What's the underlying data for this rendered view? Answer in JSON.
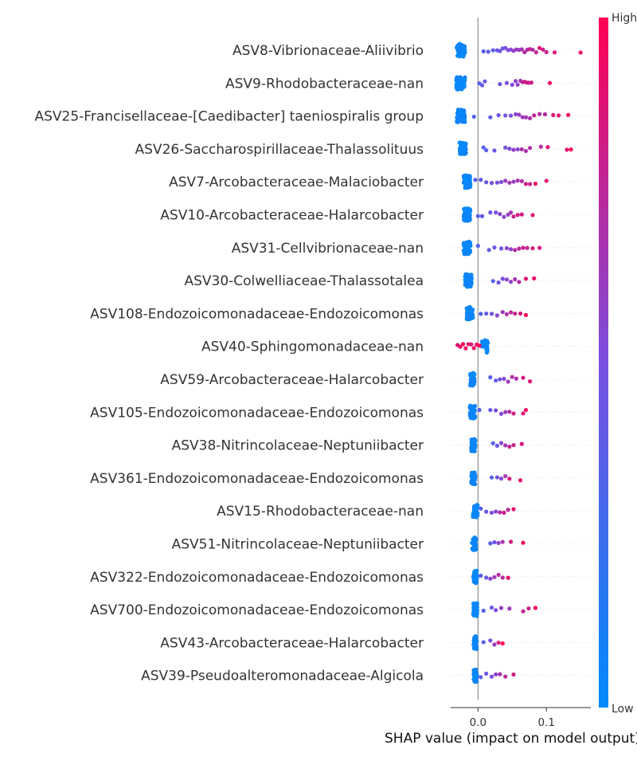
{
  "chart_data": {
    "type": "scatter",
    "subtype": "shap-beeswarm",
    "title": "",
    "xlabel": "SHAP value (impact on model output)",
    "ylabel": "",
    "xlim": [
      -0.04,
      0.165
    ],
    "xticks": [
      0.0,
      0.1
    ],
    "xtick_labels": [
      "0.0",
      "0.1"
    ],
    "zero_line": true,
    "grid": false,
    "colorbar": {
      "high_label": "High",
      "low_label": "Low",
      "high_color": "#ff0052",
      "low_color": "#008bfb"
    },
    "features": [
      {
        "name": "ASV8-Vibrionaceae-Aliivibrio",
        "low_cluster": {
          "center": -0.025,
          "width": 0.012,
          "count": 60
        },
        "high_points": [
          0.008,
          0.015,
          0.022,
          0.028,
          0.032,
          0.036,
          0.04,
          0.044,
          0.048,
          0.052,
          0.056,
          0.06,
          0.064,
          0.068,
          0.072,
          0.076,
          0.08,
          0.085,
          0.09,
          0.095,
          0.1,
          0.112,
          0.15
        ]
      },
      {
        "name": "ASV9-Rhodobacteraceae-nan",
        "low_cluster": {
          "center": -0.025,
          "width": 0.014,
          "count": 70
        },
        "high_points": [
          0.002,
          0.006,
          0.01,
          0.032,
          0.042,
          0.05,
          0.055,
          0.058,
          0.062,
          0.065,
          0.068,
          0.071,
          0.074,
          0.078,
          0.105
        ]
      },
      {
        "name": "ASV25-Francisellaceae-[Caedibacter] taeniospiralis group",
        "low_cluster": {
          "center": -0.025,
          "width": 0.012,
          "count": 60
        },
        "high_points": [
          -0.006,
          0.018,
          0.03,
          0.04,
          0.048,
          0.055,
          0.06,
          0.065,
          0.07,
          0.076,
          0.082,
          0.09,
          0.098,
          0.11,
          0.118,
          0.132
        ]
      },
      {
        "name": "ASV26-Saccharospirillaceae-Thalassolituus",
        "low_cluster": {
          "center": -0.022,
          "width": 0.01,
          "count": 55
        },
        "high_points": [
          0.008,
          0.012,
          0.024,
          0.04,
          0.046,
          0.052,
          0.058,
          0.064,
          0.07,
          0.076,
          0.092,
          0.102,
          0.13,
          0.136
        ]
      },
      {
        "name": "ASV7-Arcobacteraceae-Malaciobacter",
        "low_cluster": {
          "center": -0.016,
          "width": 0.01,
          "count": 60
        },
        "high_points": [
          -0.004,
          0.004,
          0.012,
          0.02,
          0.028,
          0.034,
          0.04,
          0.046,
          0.052,
          0.058,
          0.064,
          0.07,
          0.076,
          0.084,
          0.1
        ]
      },
      {
        "name": "ASV10-Arcobacteraceae-Halarcobacter",
        "low_cluster": {
          "center": -0.016,
          "width": 0.01,
          "count": 55
        },
        "high_points": [
          0.0,
          0.006,
          0.018,
          0.026,
          0.032,
          0.038,
          0.044,
          0.048,
          0.052,
          0.058,
          0.064,
          0.08
        ]
      },
      {
        "name": "ASV31-Cellvibrionaceae-nan",
        "low_cluster": {
          "center": -0.016,
          "width": 0.01,
          "count": 55
        },
        "high_points": [
          0.0,
          0.016,
          0.024,
          0.034,
          0.042,
          0.048,
          0.054,
          0.06,
          0.066,
          0.072,
          0.08,
          0.09
        ]
      },
      {
        "name": "ASV30-Colwelliaceae-Thalassotalea",
        "low_cluster": {
          "center": -0.014,
          "width": 0.01,
          "count": 55
        },
        "high_points": [
          0.022,
          0.03,
          0.036,
          0.042,
          0.048,
          0.054,
          0.06,
          0.07,
          0.082
        ]
      },
      {
        "name": "ASV108-Endozoicomonadaceae-Endozoicomonas",
        "low_cluster": {
          "center": -0.012,
          "width": 0.009,
          "count": 55
        },
        "high_points": [
          0.004,
          0.012,
          0.02,
          0.028,
          0.036,
          0.042,
          0.048,
          0.054,
          0.062,
          0.07
        ]
      },
      {
        "name": "ASV40-Sphingomonadaceae-nan",
        "low_cluster": {
          "center": 0.01,
          "width": 0.009,
          "count": 30
        },
        "high_points": [
          -0.03,
          -0.026,
          -0.022,
          -0.018,
          -0.014,
          -0.01,
          -0.006,
          -0.002,
          0.002
        ]
      },
      {
        "name": "ASV59-Arcobacteraceae-Halarcobacter",
        "low_cluster": {
          "center": -0.008,
          "width": 0.007,
          "count": 45
        },
        "high_points": [
          0.018,
          0.026,
          0.032,
          0.038,
          0.044,
          0.05,
          0.056,
          0.066,
          0.076
        ]
      },
      {
        "name": "ASV105-Endozoicomonadaceae-Endozoicomonas",
        "low_cluster": {
          "center": -0.008,
          "width": 0.008,
          "count": 50
        },
        "high_points": [
          0.002,
          0.018,
          0.026,
          0.034,
          0.04,
          0.046,
          0.052,
          0.066,
          0.07
        ]
      },
      {
        "name": "ASV38-Nitrincolaceae-Neptuniibacter",
        "low_cluster": {
          "center": -0.007,
          "width": 0.006,
          "count": 45
        },
        "high_points": [
          0.022,
          0.028,
          0.034,
          0.04,
          0.046,
          0.052,
          0.064
        ]
      },
      {
        "name": "ASV361-Endozoicomonadaceae-Endozoicomonas",
        "low_cluster": {
          "center": -0.007,
          "width": 0.006,
          "count": 45
        },
        "high_points": [
          0.02,
          0.028,
          0.034,
          0.04,
          0.046,
          0.062
        ]
      },
      {
        "name": "ASV15-Rhodobacteraceae-nan",
        "low_cluster": {
          "center": -0.004,
          "width": 0.007,
          "count": 50
        },
        "high_points": [
          0.004,
          0.012,
          0.02,
          0.026,
          0.032,
          0.038,
          0.044,
          0.052
        ]
      },
      {
        "name": "ASV51-Nitrincolaceae-Neptuniibacter",
        "low_cluster": {
          "center": -0.006,
          "width": 0.006,
          "count": 45
        },
        "high_points": [
          0.018,
          0.024,
          0.03,
          0.036,
          0.048,
          0.066
        ]
      },
      {
        "name": "ASV322-Endozoicomonadaceae-Endozoicomonas",
        "low_cluster": {
          "center": -0.004,
          "width": 0.006,
          "count": 45
        },
        "high_points": [
          0.004,
          0.012,
          0.018,
          0.024,
          0.03,
          0.036,
          0.044
        ]
      },
      {
        "name": "ASV700-Endozoicomonadaceae-Endozoicomonas",
        "low_cluster": {
          "center": -0.004,
          "width": 0.006,
          "count": 45
        },
        "high_points": [
          0.008,
          0.02,
          0.026,
          0.034,
          0.046,
          0.066,
          0.074,
          0.084
        ]
      },
      {
        "name": "ASV43-Arcobacteraceae-Halarcobacter",
        "low_cluster": {
          "center": -0.004,
          "width": 0.005,
          "count": 40
        },
        "high_points": [
          0.008,
          0.018,
          0.024,
          0.03,
          0.036
        ]
      },
      {
        "name": "ASV39-Pseudoalteromonadaceae-Algicola",
        "low_cluster": {
          "center": -0.004,
          "width": 0.005,
          "count": 45
        },
        "high_points": [
          0.004,
          0.012,
          0.02,
          0.026,
          0.032,
          0.04,
          0.052
        ]
      }
    ]
  }
}
